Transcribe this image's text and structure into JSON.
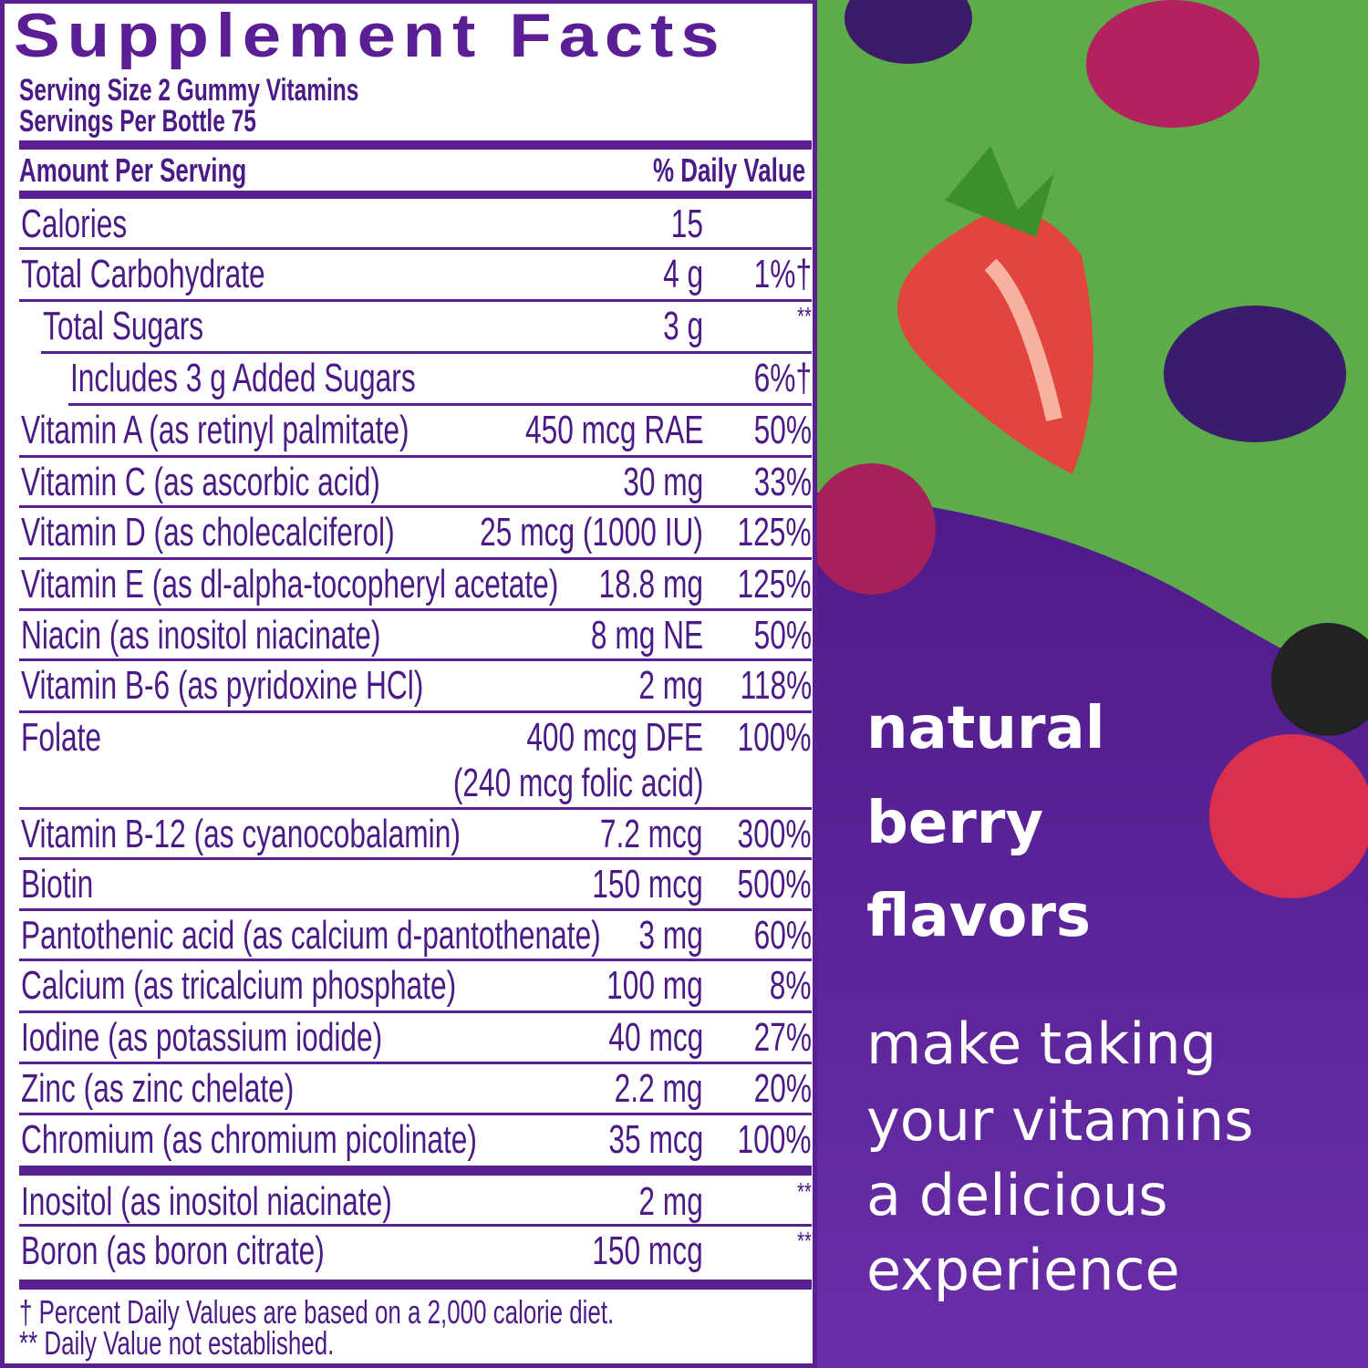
{
  "label": {
    "title": "Supplement Facts",
    "serving_size": "Serving Size 2 Gummy Vitamins",
    "servings_per": "Servings Per Bottle 75",
    "amount_header": "Amount Per Serving",
    "dv_header": "% Daily Value",
    "rows": [
      {
        "name": "Calories",
        "amount": "15",
        "dv": ""
      },
      {
        "name": "Total Carbohydrate",
        "amount": "4 g",
        "dv": "1%†"
      },
      {
        "name": "Total Sugars",
        "amount": "3 g",
        "dv": "**"
      },
      {
        "name": "Includes 3 g Added Sugars",
        "amount": "",
        "dv": "6%†"
      },
      {
        "name": "Vitamin A (as retinyl palmitate)",
        "amount": "450 mcg RAE",
        "dv": "50%"
      },
      {
        "name": "Vitamin C (as ascorbic acid)",
        "amount": "30 mg",
        "dv": "33%"
      },
      {
        "name": "Vitamin D (as cholecalciferol)",
        "amount": "25 mcg (1000 IU)",
        "dv": "125%"
      },
      {
        "name": "Vitamin E (as dl-alpha-tocopheryl acetate)",
        "amount": "18.8 mg",
        "dv": "125%"
      },
      {
        "name": "Niacin (as inositol niacinate)",
        "amount": "8 mg NE",
        "dv": "50%"
      },
      {
        "name": "Vitamin B-6 (as pyridoxine HCl)",
        "amount": "2 mg",
        "dv": "118%"
      },
      {
        "name": "Folate",
        "amount": "400 mcg DFE",
        "amount2": "(240 mcg folic acid)",
        "dv": "100%"
      },
      {
        "name": "Vitamin B-12 (as cyanocobalamin)",
        "amount": "7.2 mcg",
        "dv": "300%"
      },
      {
        "name": "Biotin",
        "amount": "150 mcg",
        "dv": "500%"
      },
      {
        "name": "Pantothenic acid (as calcium d-pantothenate)",
        "amount": "3 mg",
        "dv": "60%"
      },
      {
        "name": "Calcium (as tricalcium phosphate)",
        "amount": "100 mg",
        "dv": "8%"
      },
      {
        "name": "Iodine (as potassium iodide)",
        "amount": "40 mcg",
        "dv": "27%"
      },
      {
        "name": "Zinc (as zinc chelate)",
        "amount": "2.2 mg",
        "dv": "20%"
      },
      {
        "name": "Chromium (as chromium picolinate)",
        "amount": "35 mcg",
        "dv": "100%"
      },
      {
        "name": "Inositol (as inositol niacinate)",
        "amount": "2 mg",
        "dv": "**"
      },
      {
        "name": "Boron (as boron citrate)",
        "amount": "150 mcg",
        "dv": "**"
      }
    ],
    "footnote1": "† Percent Daily Values are based on a 2,000 calorie diet.",
    "footnote2": "** Daily Value not established."
  },
  "promo": {
    "headline": [
      "natural",
      "berry",
      "flavors"
    ],
    "tagline": [
      "make taking",
      "your vitamins",
      "a delicious",
      "experience"
    ]
  },
  "colors": {
    "label_purple": "#5a1f93",
    "green": "#5cad4a",
    "panel_purple": "#5b2296"
  }
}
